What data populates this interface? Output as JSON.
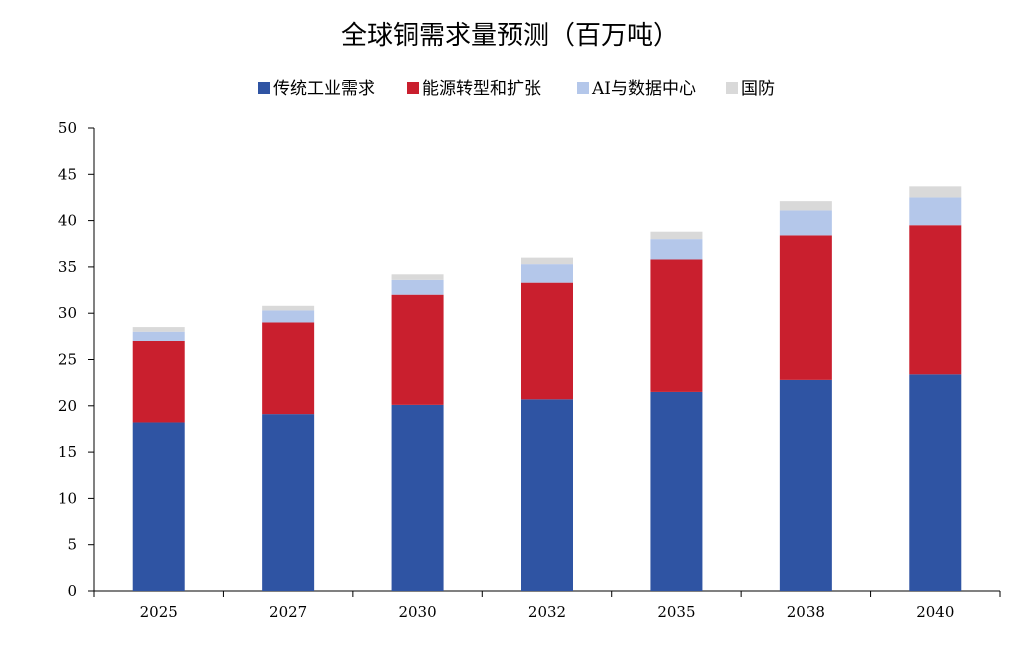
{
  "chart_data": {
    "type": "bar",
    "stacked": true,
    "title": "全球铜需求量预测（百万吨）",
    "xlabel": "",
    "ylabel": "",
    "categories": [
      "2025",
      "2027",
      "2030",
      "2032",
      "2035",
      "2038",
      "2040"
    ],
    "series": [
      {
        "name": "传统工业需求",
        "color": "#2F54A3",
        "values": [
          18.2,
          19.1,
          20.1,
          20.7,
          21.5,
          22.8,
          23.4
        ]
      },
      {
        "name": "能源转型和扩张",
        "color": "#C91F2E",
        "values": [
          8.8,
          9.9,
          11.9,
          12.6,
          14.3,
          15.6,
          16.1
        ]
      },
      {
        "name": "AI与数据中心",
        "color": "#B4C7EA",
        "values": [
          1.0,
          1.3,
          1.6,
          2.0,
          2.2,
          2.7,
          3.0
        ]
      },
      {
        "name": "国防",
        "color": "#D9D9D9",
        "values": [
          0.5,
          0.5,
          0.6,
          0.7,
          0.8,
          1.0,
          1.2
        ]
      }
    ],
    "ylim": [
      0,
      50
    ],
    "yticks": [
      0,
      5,
      10,
      15,
      20,
      25,
      30,
      35,
      40,
      45,
      50
    ],
    "grid": false,
    "legend_position": "top"
  }
}
